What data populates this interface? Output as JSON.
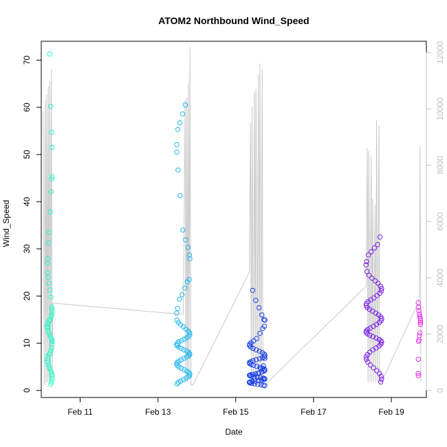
{
  "chart_data": {
    "type": "scatter",
    "title": "ATOM2 Northbound Wind_Speed",
    "xlabel": "Date",
    "ylabel": "Wind_Speed",
    "x_unit": "days",
    "x_ticks": [
      {
        "value": 11.0,
        "label": "Feb 11"
      },
      {
        "value": 13.0,
        "label": "Feb 13"
      },
      {
        "value": 15.0,
        "label": "Feb 15"
      },
      {
        "value": 17.0,
        "label": "Feb 17"
      },
      {
        "value": 19.0,
        "label": "Feb 19"
      }
    ],
    "xlim": [
      10.0,
      19.9
    ],
    "ylim": [
      -1.5,
      74
    ],
    "y_ticks": [
      0,
      10,
      20,
      30,
      40,
      50,
      60,
      70
    ],
    "y2_ticks": [
      0,
      2000,
      4000,
      6000,
      8000,
      10000,
      12000
    ],
    "y2lim": [
      -250,
      12400
    ],
    "grid": false,
    "colors": {
      "sep_line": "#c8c8c8",
      "right_axis": "#c0c0c0"
    },
    "clusters": [
      {
        "x_center": 10.22,
        "x_spread": 0.06,
        "color": "#2af5c8",
        "values": [
          71.3,
          60.2,
          54.7,
          51.5,
          45.3,
          44.8,
          42.1,
          37.9,
          33.5,
          31.3,
          27.9,
          27.0,
          25.0,
          24.0,
          22.7,
          21.3,
          19.8,
          17.7,
          17.2,
          16.7,
          16.0,
          15.5,
          15.0,
          14.8,
          14.3,
          14.0,
          13.6,
          13.2,
          12.6,
          12.1,
          11.6,
          11.1,
          10.8,
          10.4,
          9.8,
          9.0,
          8.4,
          7.9,
          7.6,
          7.2,
          6.8,
          6.3,
          5.9,
          5.4,
          4.9,
          4.4,
          3.9,
          3.4,
          2.9,
          2.4,
          1.8,
          1.3
        ]
      },
      {
        "x_center": 13.65,
        "x_spread": 0.17,
        "color": "#22b8f0",
        "values": [
          60.5,
          58.6,
          56.7,
          55.3,
          52.1,
          50.5,
          46.7,
          41.3,
          34.0,
          31.9,
          30.3,
          28.7,
          27.9,
          23.5,
          23.0,
          21.7,
          20.3,
          19.3,
          17.4,
          16.4,
          14.9,
          14.4,
          13.9,
          13.5,
          13.0,
          12.6,
          12.2,
          11.8,
          11.5,
          11.2,
          10.9,
          10.6,
          10.3,
          10.0,
          9.7,
          9.5,
          9.2,
          8.9,
          8.6,
          8.4,
          8.1,
          7.8,
          7.6,
          7.3,
          7.1,
          6.8,
          6.5,
          6.2,
          5.9,
          5.6,
          5.3,
          5.0,
          4.7,
          4.4,
          4.1,
          3.8,
          3.5,
          3.2,
          2.9,
          2.6,
          2.3,
          2.0,
          1.7,
          1.4
        ]
      },
      {
        "x_center": 15.55,
        "x_spread": 0.2,
        "color": "#1a3fe6",
        "values": [
          21.2,
          19.1,
          17.5,
          16.0,
          15.0,
          14.9,
          13.6,
          13.1,
          12.1,
          11.0,
          10.5,
          10.1,
          9.8,
          9.5,
          9.2,
          8.9,
          8.6,
          8.3,
          8.0,
          7.7,
          7.4,
          7.1,
          6.9,
          6.7,
          6.5,
          6.3,
          6.1,
          5.9,
          5.7,
          5.5,
          5.3,
          5.1,
          4.9,
          4.7,
          4.5,
          4.3,
          4.1,
          3.9,
          3.7,
          3.5,
          3.4,
          3.3,
          3.2,
          3.1,
          3.0,
          2.9,
          2.8,
          2.7,
          2.6,
          2.5,
          2.4,
          2.3,
          2.2,
          2.1,
          2.0,
          1.9,
          1.8,
          1.7,
          1.6,
          1.5,
          1.4,
          1.3,
          1.2,
          1.1,
          1.0,
          6.8,
          5.2,
          4.6,
          3.6,
          2.5
        ]
      },
      {
        "x_center": 18.55,
        "x_spread": 0.2,
        "color": "#7a1ee8",
        "values": [
          32.5,
          30.9,
          30.2,
          29.4,
          28.7,
          27.3,
          26.6,
          25.2,
          24.4,
          23.8,
          23.2,
          22.7,
          22.1,
          21.6,
          21.1,
          20.6,
          20.1,
          19.6,
          19.2,
          18.8,
          18.4,
          18.0,
          17.6,
          17.2,
          16.8,
          16.4,
          16.0,
          15.6,
          15.2,
          14.8,
          14.4,
          14.0,
          13.6,
          13.2,
          12.9,
          12.6,
          12.3,
          12.0,
          11.7,
          11.4,
          11.1,
          10.8,
          10.5,
          10.2,
          9.8,
          9.4,
          9.0,
          8.6,
          8.1,
          7.6,
          7.1,
          6.6,
          6.0,
          5.4,
          4.8,
          4.2,
          3.6,
          3.0,
          2.4,
          1.8
        ]
      },
      {
        "x_center": 19.72,
        "x_spread": 0.03,
        "color": "#e630ee",
        "values": [
          18.6,
          17.6,
          16.9,
          16.2,
          15.7,
          15.2,
          14.8,
          14.4,
          14.0,
          12.2,
          11.6,
          10.7,
          10.4,
          6.6,
          3.6,
          3.1
        ]
      }
    ],
    "secondary_line": {
      "color": "#c8c8c8",
      "points": [
        [
          10.05,
          9900
        ],
        [
          10.08,
          200
        ],
        [
          10.1,
          10300
        ],
        [
          10.12,
          250
        ],
        [
          10.14,
          10500
        ],
        [
          10.16,
          300
        ],
        [
          10.18,
          10800
        ],
        [
          10.2,
          350
        ],
        [
          10.22,
          11000
        ],
        [
          10.24,
          400
        ],
        [
          10.26,
          11400
        ],
        [
          10.28,
          600
        ],
        [
          10.3,
          3100
        ],
        [
          13.65,
          2700
        ],
        [
          13.7,
          10300
        ],
        [
          13.72,
          300
        ],
        [
          13.74,
          10400
        ],
        [
          13.76,
          300
        ],
        [
          13.78,
          10900
        ],
        [
          13.8,
          400
        ],
        [
          13.82,
          12200
        ],
        [
          13.85,
          200
        ],
        [
          13.9,
          200
        ],
        [
          15.35,
          4200
        ],
        [
          15.38,
          9500
        ],
        [
          15.4,
          200
        ],
        [
          15.42,
          10100
        ],
        [
          15.45,
          200
        ],
        [
          15.48,
          10600
        ],
        [
          15.5,
          200
        ],
        [
          15.52,
          10700
        ],
        [
          15.55,
          200
        ],
        [
          15.58,
          11200
        ],
        [
          15.6,
          200
        ],
        [
          15.62,
          11600
        ],
        [
          15.65,
          200
        ],
        [
          15.68,
          11400
        ],
        [
          15.7,
          200
        ],
        [
          15.75,
          200
        ],
        [
          18.35,
          3700
        ],
        [
          18.38,
          8600
        ],
        [
          18.4,
          300
        ],
        [
          18.42,
          8500
        ],
        [
          18.45,
          300
        ],
        [
          18.48,
          8300
        ],
        [
          18.5,
          300
        ],
        [
          18.52,
          6800
        ],
        [
          18.55,
          300
        ],
        [
          18.58,
          6600
        ],
        [
          18.6,
          300
        ],
        [
          18.62,
          9600
        ],
        [
          18.65,
          300
        ],
        [
          18.68,
          9400
        ],
        [
          18.7,
          300
        ],
        [
          18.75,
          300
        ],
        [
          19.72,
          3200
        ],
        [
          19.74,
          8700
        ],
        [
          19.76,
          300
        ]
      ]
    }
  }
}
